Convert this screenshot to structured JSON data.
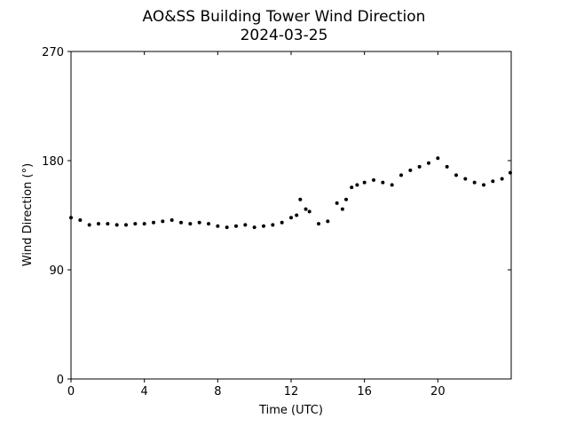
{
  "chart_data": {
    "type": "scatter",
    "title": "AO&SS Building Tower Wind Direction",
    "subtitle": "2024-03-25",
    "xlabel": "Time (UTC)",
    "ylabel": "Wind Direction (°)",
    "xlim": [
      0,
      24
    ],
    "ylim": [
      0,
      270
    ],
    "xticks": [
      0,
      4,
      8,
      12,
      16,
      20
    ],
    "yticks": [
      0,
      90,
      180,
      270
    ],
    "grid": false,
    "legend": "none",
    "marker_color": "#000000",
    "series": [
      {
        "x": [
          0.0,
          0.5,
          1.0,
          1.5,
          2.0,
          2.5,
          3.0,
          3.5,
          4.0,
          4.5,
          5.0,
          5.5,
          6.0,
          6.5,
          7.0,
          7.5,
          8.0,
          8.5,
          9.0,
          9.5,
          10.0,
          10.5,
          11.0,
          11.5,
          12.0,
          12.3,
          12.5,
          12.8,
          13.0,
          13.5,
          14.0,
          14.5,
          14.8,
          15.0,
          15.3,
          15.6,
          16.0,
          16.5,
          17.0,
          17.5,
          18.0,
          18.5,
          19.0,
          19.5,
          20.0,
          20.5,
          21.0,
          21.5,
          22.0,
          22.5,
          23.0,
          23.5,
          23.95
        ],
        "y": [
          133,
          131,
          127,
          128,
          128,
          127,
          127,
          128,
          128,
          129,
          130,
          131,
          129,
          128,
          129,
          128,
          126,
          125,
          126,
          127,
          125,
          126,
          127,
          129,
          133,
          135,
          148,
          140,
          138,
          128,
          130,
          145,
          140,
          148,
          158,
          160,
          162,
          164,
          162,
          160,
          168,
          172,
          175,
          178,
          182,
          175,
          168,
          165,
          162,
          160,
          163,
          165,
          170
        ]
      }
    ]
  }
}
